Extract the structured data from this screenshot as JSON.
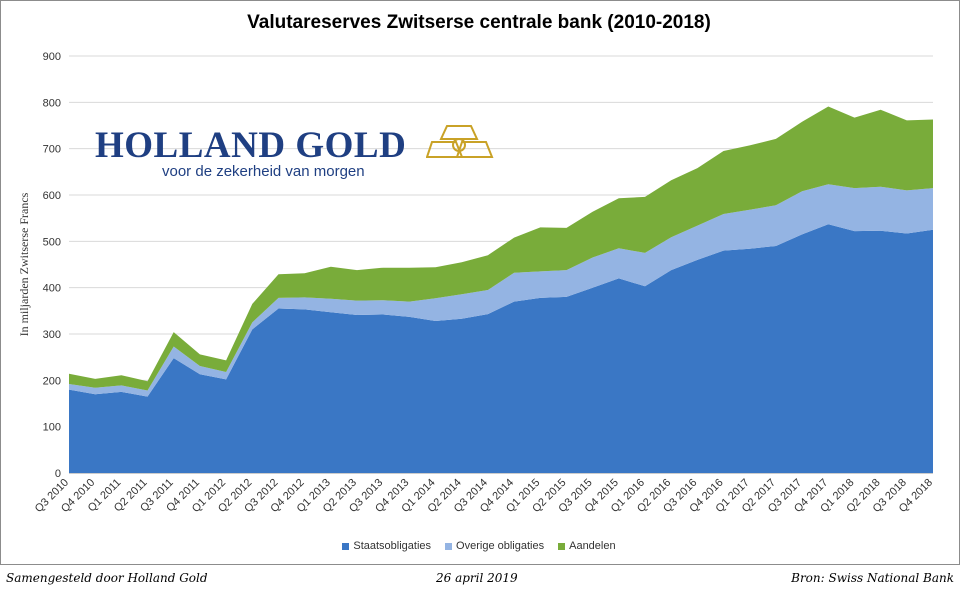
{
  "page": {
    "title": "Valutareserves Zwitserse centrale bank (2010-2018)",
    "footer_left": "Samengesteld door Holland Gold",
    "footer_center": "26 april 2019",
    "footer_right": "Bron: Swiss National Bank"
  },
  "logo": {
    "name": "HOLLAND GOLD",
    "tagline": "voor de zekerheid van morgen",
    "icon": "gold-bars-icon",
    "colors": {
      "text": "#1f3f82",
      "icon": "#c9a227"
    }
  },
  "chart_data": {
    "type": "area",
    "stacked": true,
    "title": "Valutareserves Zwitserse centrale bank (2010-2018)",
    "ylabel": "In miljarden Zwitserse Francs",
    "ylim": [
      0,
      900
    ],
    "yticks": [
      0,
      100,
      200,
      300,
      400,
      500,
      600,
      700,
      800,
      900
    ],
    "grid": "horizontal",
    "legend_position": "bottom",
    "categories": [
      "Q3 2010",
      "Q4 2010",
      "Q1 2011",
      "Q2 2011",
      "Q3 2011",
      "Q4 2011",
      "Q1 2012",
      "Q2 2012",
      "Q3 2012",
      "Q4 2012",
      "Q1 2013",
      "Q2 2013",
      "Q3 2013",
      "Q4 2013",
      "Q1 2014",
      "Q2 2014",
      "Q3 2014",
      "Q4 2014",
      "Q1 2015",
      "Q2 2015",
      "Q3 2015",
      "Q4 2015",
      "Q1 2016",
      "Q2 2016",
      "Q3 2016",
      "Q4 2016",
      "Q1 2017",
      "Q2 2017",
      "Q3 2017",
      "Q4 2017",
      "Q1 2018",
      "Q2 2018",
      "Q3 2018",
      "Q4 2018"
    ],
    "series": [
      {
        "name": "Staatsobligaties",
        "color": "#3a77c5",
        "values": [
          180,
          170,
          175,
          165,
          248,
          213,
          202,
          310,
          355,
          353,
          347,
          341,
          342,
          337,
          328,
          333,
          343,
          370,
          378,
          380,
          400,
          420,
          403,
          438,
          460,
          480,
          484,
          490,
          515,
          537,
          522,
          523,
          517,
          525
        ]
      },
      {
        "name": "Overige obligaties",
        "color": "#94b4e3",
        "values": [
          12,
          14,
          14,
          13,
          25,
          18,
          16,
          15,
          23,
          26,
          29,
          31,
          31,
          33,
          49,
          53,
          52,
          62,
          57,
          58,
          65,
          65,
          72,
          71,
          74,
          79,
          84,
          88,
          93,
          86,
          93,
          95,
          93,
          90
        ]
      },
      {
        "name": "Aandelen",
        "color": "#79ac3a",
        "values": [
          22,
          19,
          22,
          20,
          31,
          25,
          25,
          40,
          51,
          52,
          69,
          66,
          70,
          73,
          67,
          69,
          75,
          76,
          95,
          91,
          99,
          108,
          121,
          123,
          124,
          136,
          139,
          143,
          150,
          168,
          152,
          166,
          151,
          148
        ]
      }
    ]
  }
}
